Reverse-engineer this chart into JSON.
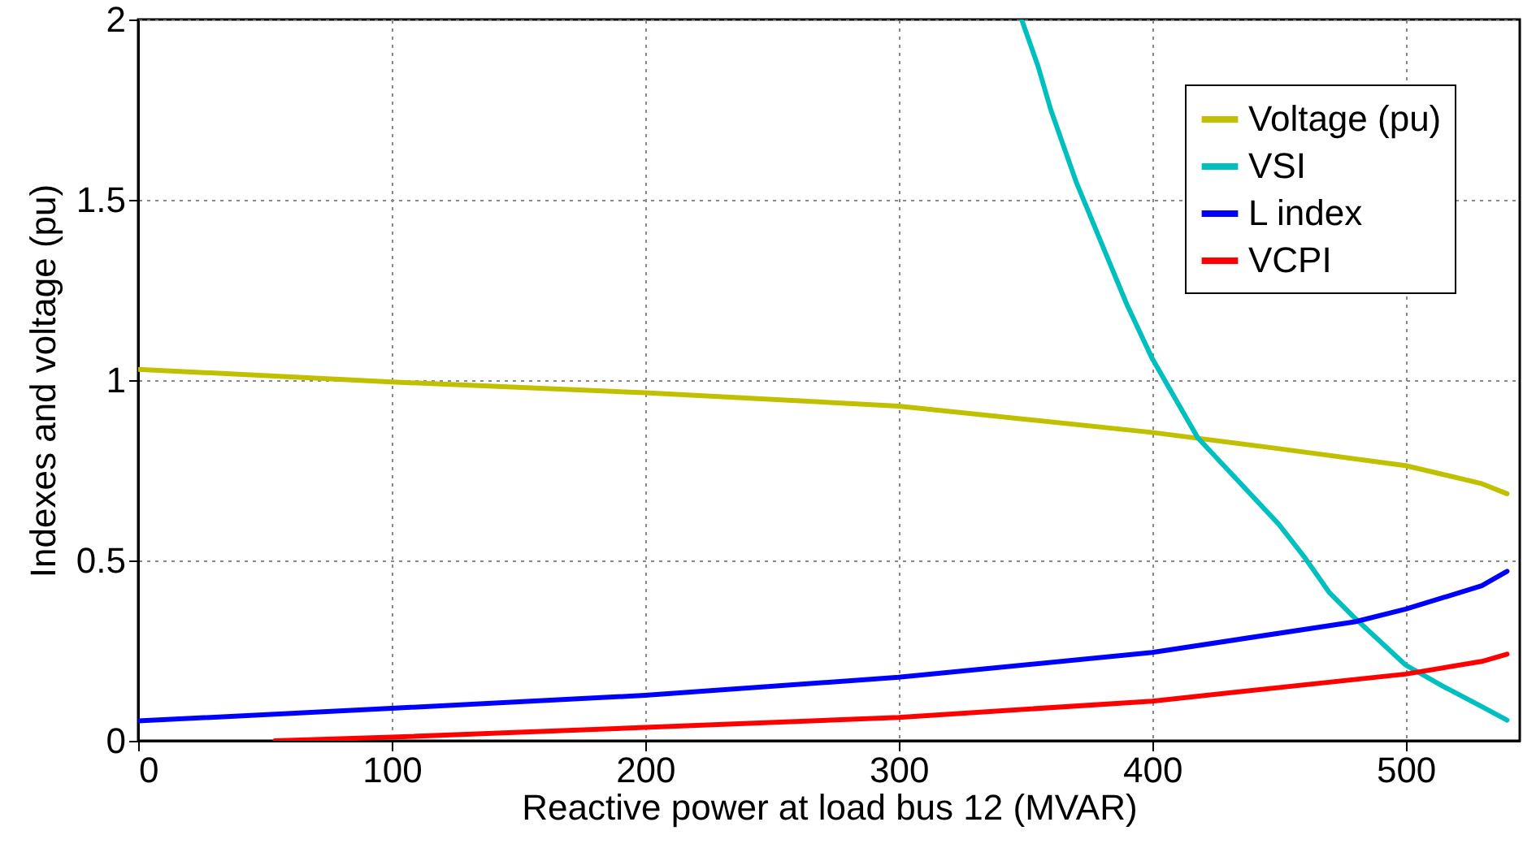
{
  "chart_data": {
    "type": "line",
    "xlabel": "Reactive power at load bus 12 (MVAR)",
    "ylabel": "Indexes and voltage (pu)",
    "xlim": [
      0,
      545
    ],
    "ylim": [
      0,
      2
    ],
    "xticks": [
      0,
      100,
      200,
      300,
      400,
      500
    ],
    "yticks": [
      0,
      0.5,
      1,
      1.5,
      2
    ],
    "grid": true,
    "legend": "top right",
    "line_style": "solid",
    "series": [
      {
        "name": "Voltage (pu)",
        "color": "#c0c000",
        "x": [
          0,
          100,
          200,
          300,
          400,
          450,
          500,
          530,
          540
        ],
        "values": [
          1.03,
          0.995,
          0.965,
          0.928,
          0.855,
          0.81,
          0.763,
          0.713,
          0.685
        ]
      },
      {
        "name": "VSI",
        "color": "#00bfbf",
        "x": [
          348.5,
          355,
          360,
          370,
          380,
          390,
          400,
          418,
          430,
          450,
          460,
          470,
          480,
          500,
          515,
          530,
          540
        ],
        "values": [
          2,
          1.87,
          1.75,
          1.55,
          1.38,
          1.21,
          1.06,
          0.84,
          0.75,
          0.6,
          0.51,
          0.41,
          0.34,
          0.21,
          0.15,
          0.095,
          0.057
        ]
      },
      {
        "name": "L index",
        "color": "#0000ff",
        "x": [
          0,
          100,
          200,
          300,
          400,
          480,
          500,
          530,
          540
        ],
        "values": [
          0.055,
          0.09,
          0.126,
          0.176,
          0.245,
          0.33,
          0.365,
          0.43,
          0.47
        ]
      },
      {
        "name": "VCPI",
        "color": "#ff0000",
        "x": [
          54,
          100,
          200,
          300,
          400,
          500,
          530,
          540
        ],
        "values": [
          0,
          0.01,
          0.037,
          0.065,
          0.11,
          0.185,
          0.22,
          0.24
        ]
      }
    ]
  }
}
